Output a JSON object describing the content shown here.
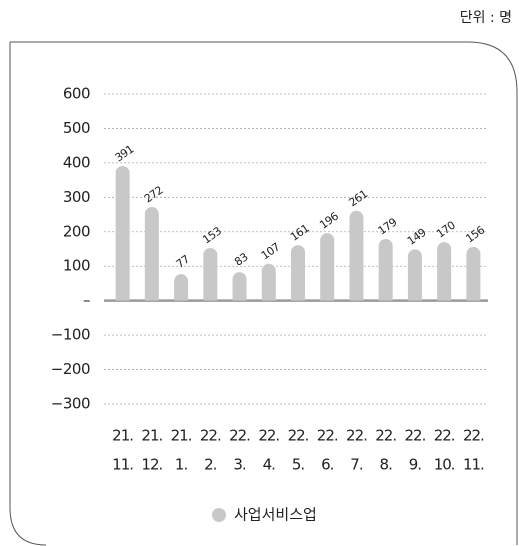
{
  "chart_data": {
    "type": "bar",
    "unit_label": "단위 : 명",
    "categories": [
      [
        "21.",
        "11."
      ],
      [
        "21.",
        "12."
      ],
      [
        "21.",
        "1."
      ],
      [
        "22.",
        "2."
      ],
      [
        "22.",
        "3."
      ],
      [
        "22.",
        "4."
      ],
      [
        "22.",
        "5."
      ],
      [
        "22.",
        "6."
      ],
      [
        "22.",
        "7."
      ],
      [
        "22.",
        "8."
      ],
      [
        "22.",
        "9."
      ],
      [
        "22.",
        "10."
      ],
      [
        "22.",
        "11."
      ]
    ],
    "series": [
      {
        "name": "사업서비스업",
        "color": "#c8c8c8",
        "values": [
          391,
          272,
          77,
          153,
          83,
          107,
          161,
          196,
          261,
          179,
          149,
          170,
          156
        ]
      }
    ],
    "ylim": [
      -300,
      600
    ],
    "yticks": [
      600,
      500,
      400,
      300,
      200,
      100,
      {
        "value": 0,
        "label": "–"
      },
      {
        "value": -100,
        "label": "−100"
      },
      {
        "value": -200,
        "label": "−200"
      },
      {
        "value": -300,
        "label": "−300"
      }
    ],
    "grid": true,
    "legend": "bottom"
  }
}
